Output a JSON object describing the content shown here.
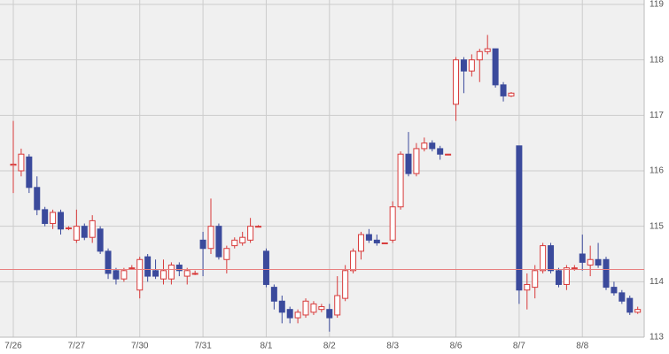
{
  "chart_data": {
    "type": "candlestick",
    "categories": [
      "7/26",
      null,
      null,
      null,
      null,
      null,
      null,
      null,
      "7/27",
      null,
      null,
      null,
      null,
      null,
      null,
      null,
      "7/30",
      null,
      null,
      null,
      null,
      null,
      null,
      null,
      "7/31",
      null,
      null,
      null,
      null,
      null,
      null,
      null,
      "8/1",
      null,
      null,
      null,
      null,
      null,
      null,
      null,
      "8/2",
      null,
      null,
      null,
      null,
      null,
      null,
      null,
      "8/3",
      null,
      null,
      null,
      null,
      null,
      null,
      null,
      "8/6",
      null,
      null,
      null,
      null,
      null,
      null,
      null,
      "8/7",
      null,
      null,
      null,
      null,
      null,
      null,
      null,
      "8/8",
      null,
      null,
      null,
      null,
      null,
      null,
      null
    ],
    "open": [
      116.1,
      116.0,
      116.25,
      115.7,
      115.3,
      115.05,
      115.25,
      114.97,
      114.75,
      115.0,
      114.8,
      114.95,
      114.55,
      114.2,
      114.05,
      114.25,
      113.85,
      114.45,
      114.2,
      114.05,
      114.05,
      114.3,
      114.1,
      114.15,
      114.75,
      114.6,
      115.0,
      114.4,
      114.65,
      114.7,
      114.75,
      115.0,
      114.55,
      113.9,
      113.65,
      113.5,
      113.35,
      113.4,
      113.45,
      113.5,
      113.5,
      113.4,
      113.7,
      114.2,
      114.55,
      114.85,
      114.75,
      114.7,
      114.75,
      115.35,
      116.3,
      115.95,
      116.4,
      116.5,
      116.4,
      116.3,
      117.2,
      118.0,
      117.8,
      118.0,
      118.15,
      118.2,
      117.55,
      117.35,
      116.45,
      113.85,
      113.9,
      114.2,
      114.65,
      114.2,
      113.95,
      114.25,
      114.5,
      114.3,
      114.4,
      114.4,
      113.9,
      113.8,
      113.7,
      113.45
    ],
    "high": [
      116.9,
      116.4,
      116.3,
      115.9,
      115.35,
      115.3,
      115.3,
      115.0,
      115.3,
      115.05,
      115.2,
      115.0,
      114.6,
      114.25,
      114.25,
      114.3,
      114.45,
      114.5,
      114.4,
      114.4,
      114.35,
      114.35,
      114.25,
      114.2,
      114.9,
      115.5,
      115.05,
      114.65,
      114.8,
      114.9,
      115.15,
      115.02,
      114.6,
      113.95,
      113.75,
      113.55,
      113.5,
      113.7,
      113.65,
      113.6,
      113.6,
      114.1,
      114.3,
      114.6,
      114.9,
      114.95,
      114.85,
      114.7,
      115.45,
      116.35,
      116.7,
      116.5,
      116.6,
      116.55,
      116.45,
      116.3,
      118.05,
      118.05,
      118.1,
      118.2,
      118.45,
      118.2,
      117.6,
      117.42,
      116.45,
      114.15,
      114.3,
      114.7,
      114.7,
      114.25,
      114.3,
      114.3,
      114.85,
      114.65,
      114.7,
      114.45,
      114.0,
      113.85,
      113.75,
      113.55
    ],
    "low": [
      115.6,
      115.9,
      115.6,
      115.2,
      115.0,
      114.95,
      114.85,
      114.93,
      114.7,
      114.75,
      114.7,
      114.5,
      114.05,
      113.95,
      114.0,
      114.22,
      113.7,
      114.0,
      114.05,
      113.95,
      113.95,
      114.1,
      113.95,
      114.12,
      114.1,
      114.5,
      114.4,
      114.15,
      114.6,
      114.65,
      114.7,
      114.98,
      113.9,
      113.5,
      113.25,
      113.25,
      113.25,
      113.35,
      113.4,
      113.45,
      113.1,
      113.35,
      113.65,
      114.15,
      114.4,
      114.7,
      114.65,
      114.7,
      114.7,
      115.3,
      115.9,
      115.9,
      116.35,
      116.35,
      116.2,
      116.3,
      116.9,
      117.4,
      117.7,
      117.6,
      118.1,
      117.5,
      117.25,
      117.33,
      113.6,
      113.5,
      113.7,
      114.15,
      114.15,
      113.9,
      113.85,
      114.2,
      114.2,
      114.1,
      114.25,
      113.85,
      113.75,
      113.6,
      113.4,
      113.42
    ],
    "close": [
      116.12,
      116.3,
      115.7,
      115.3,
      115.05,
      115.25,
      114.95,
      114.97,
      115.0,
      114.8,
      115.1,
      114.55,
      114.15,
      114.05,
      114.2,
      114.25,
      114.4,
      114.1,
      114.1,
      114.2,
      114.3,
      114.2,
      114.2,
      114.15,
      114.6,
      115.0,
      114.45,
      114.6,
      114.75,
      114.8,
      115.0,
      115.0,
      113.95,
      113.65,
      113.45,
      113.35,
      113.45,
      113.65,
      113.6,
      113.55,
      113.35,
      113.75,
      114.2,
      114.55,
      114.85,
      114.75,
      114.7,
      114.7,
      115.35,
      116.3,
      115.95,
      116.4,
      116.5,
      116.4,
      116.3,
      116.3,
      118.0,
      117.8,
      118.0,
      118.15,
      118.2,
      117.55,
      117.35,
      117.4,
      113.85,
      113.95,
      114.2,
      114.65,
      114.2,
      113.95,
      114.25,
      114.25,
      114.35,
      114.4,
      114.3,
      113.9,
      113.8,
      113.65,
      113.45,
      113.5
    ],
    "up_color": "#d83a3a",
    "down_color": "#3b4a9c",
    "reference_line": 114.22,
    "reference_color": "#e88080",
    "ylim": [
      113,
      119
    ],
    "yticks": [
      113,
      114,
      115,
      116,
      117,
      118,
      119
    ],
    "grid": true
  }
}
